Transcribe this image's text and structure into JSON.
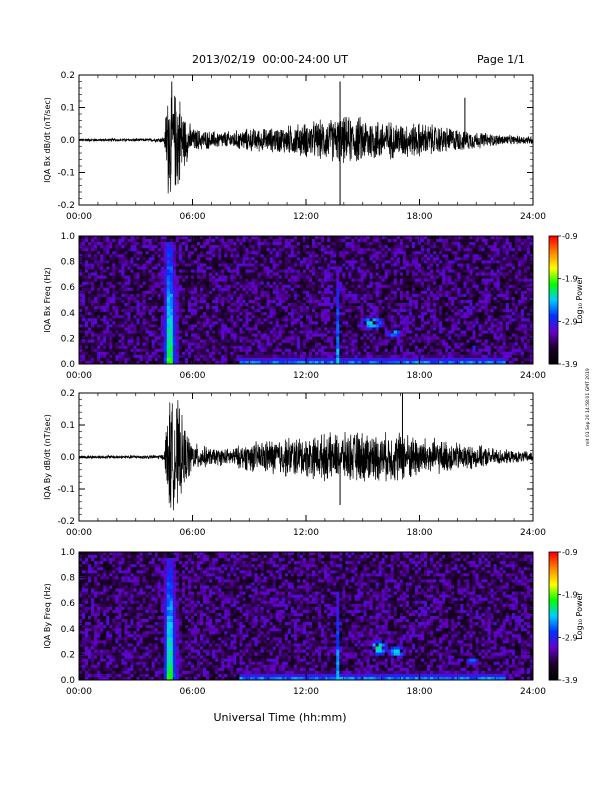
{
  "header": {
    "title": "2013/02/19  00:00-24:00 UT",
    "page": "Page 1/1",
    "side_note": "mit 01 Sep 20 14:58:01 GMT 2019"
  },
  "colorbar": {
    "ticks": [
      "-0.9",
      "-1.9",
      "-2.9",
      "-3.9"
    ],
    "label": "Log₁₀ Power",
    "colors": [
      "#ff0000",
      "#ff8800",
      "#ffff00",
      "#00ff00",
      "#00ccff",
      "#0033ff",
      "#6600cc",
      "#200030",
      "#000000"
    ]
  },
  "colors": {
    "spectrogram_bg": "#2a1a5c",
    "trace": "#000000"
  },
  "chart_data": [
    {
      "type": "line",
      "ylabel": "IQA Bx dB/dt (nT/sec)",
      "xlim": [
        0,
        24
      ],
      "ylim": [
        -0.2,
        0.2
      ],
      "xticks": [
        "00:00",
        "06:00",
        "12:00",
        "18:00",
        "24:00"
      ],
      "yticks": [
        "0.2",
        "0.1",
        "0.0",
        "-0.1",
        "-0.2"
      ],
      "envelope": {
        "x": [
          0,
          1,
          2,
          3,
          4,
          4.5,
          4.7,
          4.9,
          5.0,
          5.2,
          5.5,
          6,
          7,
          8,
          9,
          10,
          11,
          12,
          13,
          14,
          15,
          16,
          17,
          18,
          19,
          20,
          21,
          22,
          23,
          24
        ],
        "amplitude": [
          0.005,
          0.005,
          0.005,
          0.005,
          0.006,
          0.01,
          0.2,
          0.2,
          0.15,
          0.2,
          0.1,
          0.04,
          0.03,
          0.03,
          0.04,
          0.04,
          0.05,
          0.06,
          0.07,
          0.08,
          0.08,
          0.07,
          0.06,
          0.06,
          0.05,
          0.04,
          0.03,
          0.02,
          0.015,
          0.015
        ]
      },
      "spikes": [
        {
          "x": 13.8,
          "y": 0.18
        },
        {
          "x": 13.8,
          "y": -0.2
        },
        {
          "x": 20.4,
          "y": 0.13
        }
      ]
    },
    {
      "type": "heatmap",
      "ylabel": "IQA Bx Freq (Hz)",
      "xlim": [
        0,
        24
      ],
      "ylim": [
        0,
        1.0
      ],
      "xticks": [
        "00:00",
        "06:00",
        "12:00",
        "18:00",
        "24:00"
      ],
      "yticks": [
        "1.0",
        "0.8",
        "0.6",
        "0.4",
        "0.2",
        "0.0"
      ],
      "zlim": [
        -3.9,
        -0.9
      ],
      "background_level": -3.4,
      "features": [
        {
          "kind": "burst",
          "x": 4.8,
          "width": 0.35,
          "fmax": 0.95,
          "level": -1.6
        },
        {
          "kind": "streak",
          "x": 5.1,
          "width": 0.15,
          "fmax": 0.7,
          "level": -2.3
        },
        {
          "kind": "streak",
          "x": 13.7,
          "width": 0.1,
          "fmax": 0.75,
          "level": -2.2
        },
        {
          "kind": "band",
          "x0": 8.5,
          "x1": 22.5,
          "fmax": 0.06,
          "level": -2.2
        },
        {
          "kind": "patch",
          "x": 15.5,
          "y": 0.32,
          "w": 1.4,
          "h": 0.12,
          "level": -2.3
        },
        {
          "kind": "patch",
          "x": 16.6,
          "y": 0.25,
          "w": 1.0,
          "h": 0.1,
          "level": -2.4
        },
        {
          "kind": "patch",
          "x": 21.0,
          "y": 0.12,
          "w": 0.6,
          "h": 0.06,
          "level": -2.6
        }
      ]
    },
    {
      "type": "line",
      "ylabel": "IQA By dB/dt (nT/sec)",
      "xlim": [
        0,
        24
      ],
      "ylim": [
        -0.2,
        0.2
      ],
      "xticks": [
        "00:00",
        "06:00",
        "12:00",
        "18:00",
        "24:00"
      ],
      "yticks": [
        "0.2",
        "0.1",
        "0.0",
        "-0.1",
        "-0.2"
      ],
      "envelope": {
        "x": [
          0,
          1,
          2,
          3,
          4,
          4.5,
          4.7,
          4.9,
          5.0,
          5.2,
          5.5,
          6,
          7,
          8,
          9,
          10,
          11,
          12,
          13,
          14,
          15,
          16,
          17,
          18,
          19,
          20,
          21,
          22,
          23,
          24
        ],
        "amplitude": [
          0.006,
          0.006,
          0.006,
          0.006,
          0.007,
          0.01,
          0.2,
          0.2,
          0.17,
          0.2,
          0.12,
          0.05,
          0.03,
          0.03,
          0.05,
          0.06,
          0.07,
          0.07,
          0.08,
          0.08,
          0.09,
          0.08,
          0.09,
          0.07,
          0.06,
          0.05,
          0.04,
          0.03,
          0.02,
          0.02
        ]
      },
      "spikes": [
        {
          "x": 17.1,
          "y": 0.2
        },
        {
          "x": 13.8,
          "y": -0.15
        }
      ]
    },
    {
      "type": "heatmap",
      "ylabel": "IQA By Freq (Hz)",
      "xlim": [
        0,
        24
      ],
      "ylim": [
        0,
        1.0
      ],
      "xticks": [
        "00:00",
        "06:00",
        "12:00",
        "18:00",
        "24:00"
      ],
      "yticks": [
        "1.0",
        "0.8",
        "0.6",
        "0.4",
        "0.2",
        "0.0"
      ],
      "zlim": [
        -3.9,
        -0.9
      ],
      "background_level": -3.4,
      "features": [
        {
          "kind": "burst",
          "x": 4.8,
          "width": 0.35,
          "fmax": 0.95,
          "level": -1.6
        },
        {
          "kind": "streak",
          "x": 5.1,
          "width": 0.15,
          "fmax": 0.6,
          "level": -2.3
        },
        {
          "kind": "streak",
          "x": 13.7,
          "width": 0.1,
          "fmax": 0.7,
          "level": -2.2
        },
        {
          "kind": "band",
          "x0": 8.5,
          "x1": 22.5,
          "fmax": 0.06,
          "level": -2.2
        },
        {
          "kind": "patch",
          "x": 15.8,
          "y": 0.25,
          "w": 1.2,
          "h": 0.14,
          "level": -2.2
        },
        {
          "kind": "patch",
          "x": 16.8,
          "y": 0.22,
          "w": 1.0,
          "h": 0.1,
          "level": -2.3
        },
        {
          "kind": "patch",
          "x": 20.8,
          "y": 0.15,
          "w": 0.8,
          "h": 0.06,
          "level": -2.6
        }
      ]
    }
  ],
  "footer": {
    "xlabel": "Universal Time (hh:mm)"
  }
}
